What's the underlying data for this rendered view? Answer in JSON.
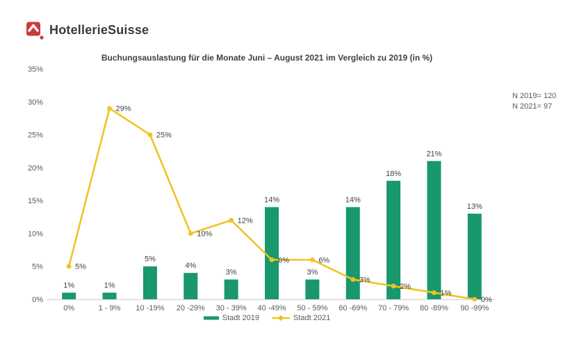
{
  "logo": {
    "icon": "hotelleriesuisse-house-icon",
    "text": "HotellerieSuisse",
    "brand_red": "#cb3a40",
    "brand_dark": "#3a3a39"
  },
  "chart_data": {
    "type": "bar+line",
    "title": "Buchungsauslastung für die Monate Juni – August 2021 im Vergleich zu 2019 (in %)",
    "categories": [
      "0%",
      "1 - 9%",
      "10 -19%",
      "20 -29%",
      "30 - 39%",
      "40 -49%",
      "50 - 59%",
      "60 -69%",
      "70 - 79%",
      "80 -89%",
      "90 -99%"
    ],
    "series": [
      {
        "name": "Stadt  2019",
        "type": "bar",
        "color": "#18986c",
        "values": [
          1,
          1,
          5,
          4,
          3,
          14,
          3,
          14,
          18,
          21,
          13
        ]
      },
      {
        "name": "Stadt 2021",
        "type": "line",
        "color": "#efc326",
        "values": [
          5,
          29,
          25,
          10,
          12,
          6,
          6,
          3,
          2,
          1,
          0
        ]
      }
    ],
    "y_axis": {
      "min": 0,
      "max": 35,
      "step": 5,
      "unit": "%",
      "tick_labels": [
        "0%",
        "5%",
        "10%",
        "15%",
        "20%",
        "25%",
        "30%",
        "35%"
      ]
    },
    "grid": false,
    "legend_position": "bottom",
    "label_unit": "%",
    "annotation": {
      "line1": "N 2019= 120",
      "line2": "N 2021= 97"
    },
    "colors": {
      "axis_text": "#595959",
      "data_label_text": "#404040",
      "baseline": "#d9d9d9"
    }
  }
}
